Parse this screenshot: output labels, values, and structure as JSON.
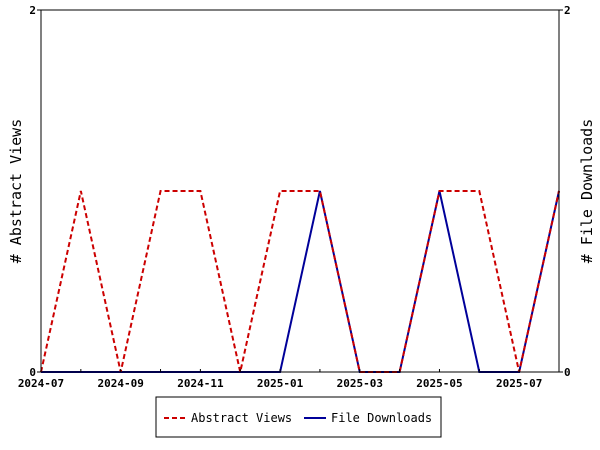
{
  "chart_data": {
    "type": "line",
    "x": [
      "2024-07",
      "2024-08",
      "2024-09",
      "2024-10",
      "2024-11",
      "2024-12",
      "2025-01",
      "2025-02",
      "2025-03",
      "2025-04",
      "2025-05",
      "2025-06",
      "2025-07",
      "2025-08"
    ],
    "x_tick_labels": [
      "2024-07",
      "2024-09",
      "2024-11",
      "2025-01",
      "2025-03",
      "2025-05",
      "2025-07"
    ],
    "series": [
      {
        "name": "Abstract Views",
        "axis": "left",
        "color": "#cc0000",
        "dashed": true,
        "values": [
          0,
          1,
          0,
          1,
          1,
          0,
          1,
          1,
          0,
          0,
          1,
          1,
          0,
          1
        ]
      },
      {
        "name": "File Downloads",
        "axis": "right",
        "color": "#000099",
        "dashed": false,
        "values": [
          0,
          0,
          0,
          0,
          0,
          0,
          0,
          1,
          0,
          0,
          1,
          0,
          0,
          1
        ]
      }
    ],
    "ylabel": "# Abstract Views",
    "y2label": "# File Downloads",
    "ylim": [
      0,
      2
    ],
    "y2lim": [
      0,
      2
    ],
    "y_ticks": [
      "0",
      "2"
    ],
    "y2_ticks": [
      "0",
      "2"
    ],
    "grid": false,
    "legend_position": "bottom"
  }
}
